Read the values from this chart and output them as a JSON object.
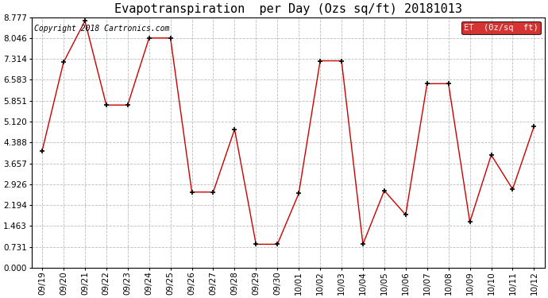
{
  "title": "Evapotranspiration  per Day (Ozs sq/ft) 20181013",
  "copyright": "Copyright 2018 Cartronics.com",
  "legend_label": "ET  (0z/sq  ft)",
  "dates": [
    "09/19",
    "09/20",
    "09/21",
    "09/22",
    "09/23",
    "09/24",
    "09/25",
    "09/26",
    "09/27",
    "09/28",
    "09/29",
    "09/30",
    "10/01",
    "10/02",
    "10/03",
    "10/04",
    "10/05",
    "10/06",
    "10/07",
    "10/08",
    "10/09",
    "10/10",
    "10/11",
    "10/12"
  ],
  "values": [
    4.1,
    7.2,
    8.65,
    5.7,
    5.7,
    8.05,
    8.05,
    2.65,
    2.65,
    4.85,
    0.82,
    0.82,
    2.6,
    7.25,
    7.25,
    0.82,
    2.7,
    1.85,
    6.45,
    6.45,
    1.6,
    3.95,
    2.75,
    4.95
  ],
  "line_color": "#cc0000",
  "marker": "+",
  "marker_color": "#000000",
  "bg_color": "#ffffff",
  "grid_color": "#bbbbbb",
  "ylim": [
    0.0,
    8.777
  ],
  "yticks": [
    0.0,
    0.731,
    1.463,
    2.194,
    2.926,
    3.657,
    4.388,
    5.12,
    5.851,
    6.583,
    7.314,
    8.046,
    8.777
  ],
  "legend_bg": "#cc0000",
  "legend_text_color": "#ffffff",
  "title_fontsize": 11,
  "tick_fontsize": 7.5,
  "copyright_fontsize": 7,
  "figwidth": 6.9,
  "figheight": 3.75,
  "dpi": 100
}
